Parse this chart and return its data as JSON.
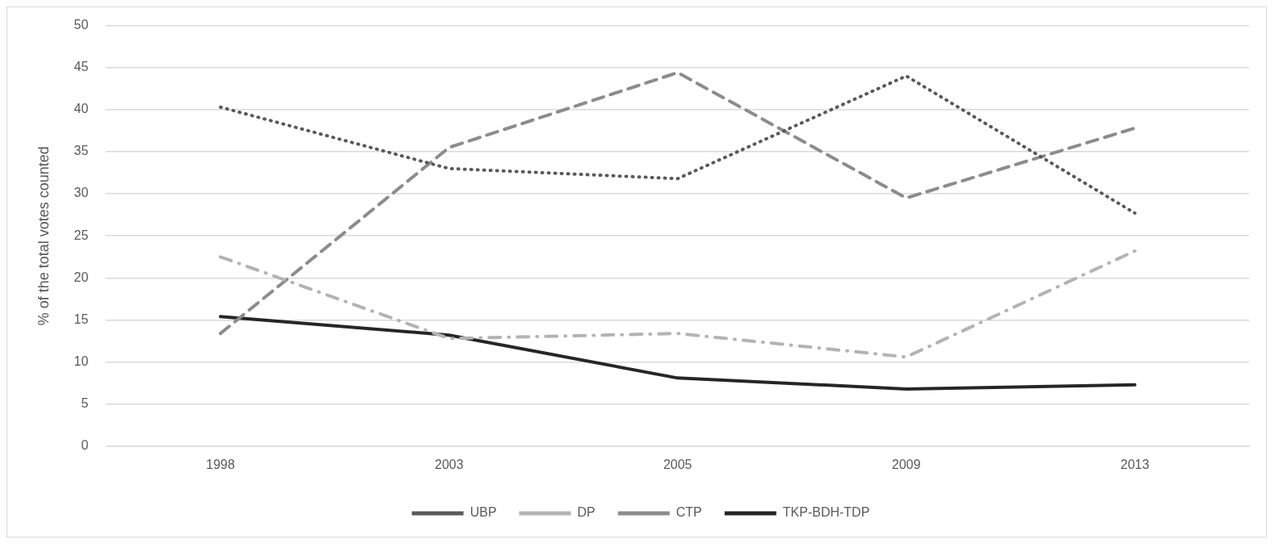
{
  "chart_data": {
    "type": "line",
    "ylabel": "% of the total votes counted",
    "categories": [
      "1998",
      "2003",
      "2005",
      "2009",
      "2013"
    ],
    "series": [
      {
        "name": "UBP",
        "color": "#595959",
        "line_style": "dotted",
        "values": [
          40.3,
          33.0,
          31.8,
          44.0,
          27.7
        ]
      },
      {
        "name": "DP",
        "color": "#b3b3b3",
        "line_style": "dashdot",
        "values": [
          22.5,
          12.8,
          13.4,
          10.6,
          23.2
        ]
      },
      {
        "name": "CTP",
        "color": "#8c8c8c",
        "line_style": "dashed",
        "values": [
          13.4,
          35.5,
          44.4,
          29.5,
          37.8
        ]
      },
      {
        "name": "TKP-BDH-TDP",
        "color": "#262626",
        "line_style": "solid",
        "values": [
          15.4,
          13.2,
          8.1,
          6.8,
          7.3
        ]
      }
    ],
    "ylim": [
      0,
      50
    ],
    "yticks": [
      0,
      5,
      10,
      15,
      20,
      25,
      30,
      35,
      40,
      45,
      50
    ],
    "grid": "y",
    "legend": "bottom",
    "marker": "none"
  }
}
